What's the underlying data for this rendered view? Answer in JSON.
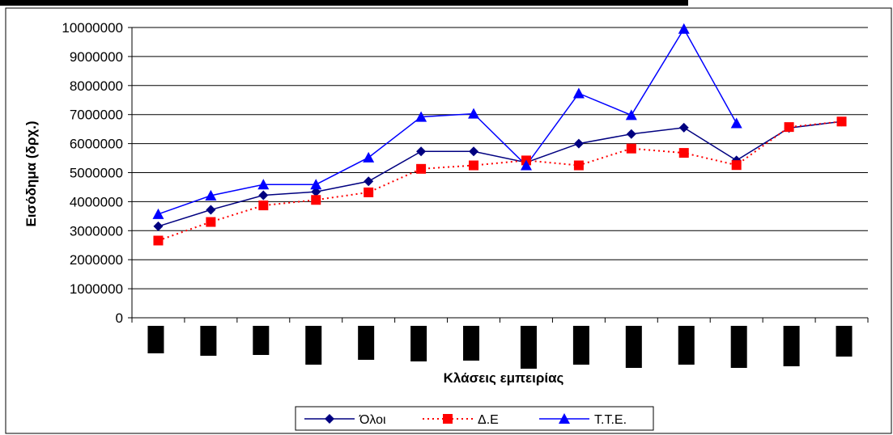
{
  "chart_data": {
    "type": "line",
    "title": "",
    "xlabel": "Κλάσεις εμπειρίας",
    "ylabel": "Εισόδημα (δρχ.)",
    "ylim": [
      0,
      10000000
    ],
    "yticks": [
      0,
      1000000,
      2000000,
      3000000,
      4000000,
      5000000,
      6000000,
      7000000,
      8000000,
      9000000,
      10000000
    ],
    "grid": "horizontal",
    "legend_position": "bottom",
    "categories_redacted": true,
    "category_count": 14,
    "series": [
      {
        "name": "Όλοι",
        "color": "#000080",
        "marker": "diamond",
        "line": "solid",
        "values": [
          3150000,
          3720000,
          4220000,
          4340000,
          4700000,
          5730000,
          5730000,
          5350000,
          6000000,
          6330000,
          6550000,
          5420000,
          6540000,
          6760000
        ]
      },
      {
        "name": "Δ.Ε",
        "color": "#ff0000",
        "marker": "square",
        "line": "dotted",
        "values": [
          2660000,
          3300000,
          3870000,
          4060000,
          4320000,
          5130000,
          5250000,
          5420000,
          5250000,
          5830000,
          5680000,
          5260000,
          6570000,
          6760000
        ]
      },
      {
        "name": "Τ.Τ.Ε.",
        "color": "#0000ff",
        "marker": "triangle",
        "line": "solid",
        "values": [
          3570000,
          4210000,
          4590000,
          4590000,
          5520000,
          6920000,
          7030000,
          5250000,
          7730000,
          6980000,
          9950000,
          6700000,
          null,
          null
        ]
      }
    ]
  }
}
